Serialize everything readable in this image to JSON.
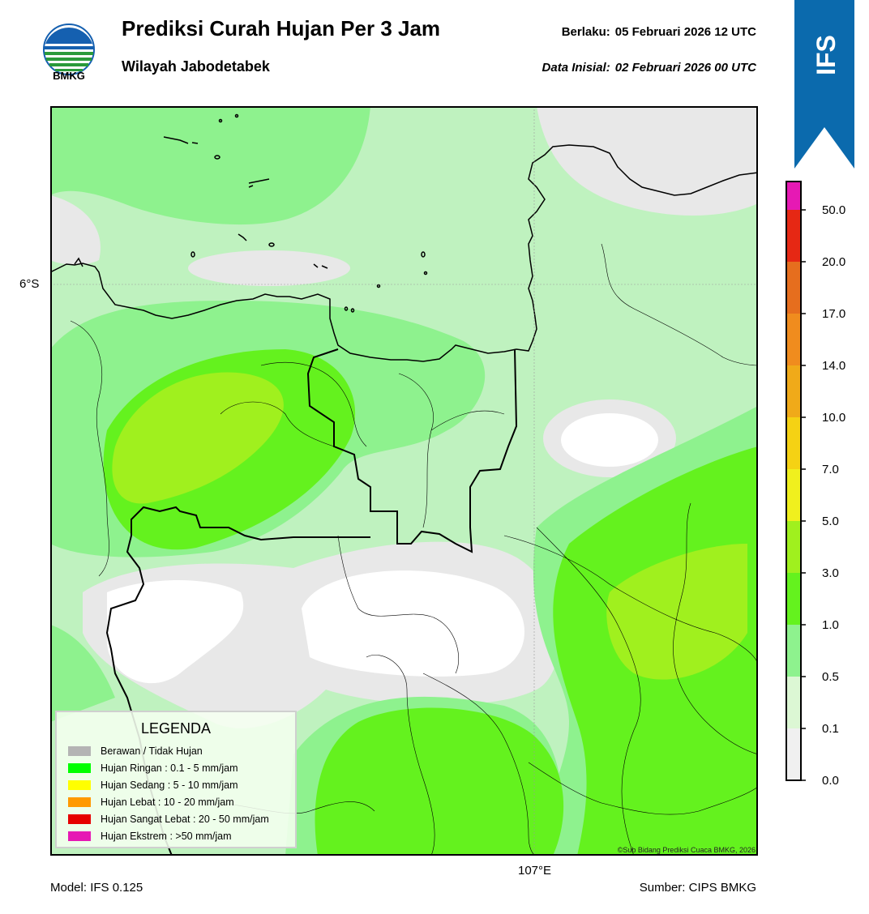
{
  "header": {
    "title": "Prediksi Curah Hujan Per 3 Jam",
    "subtitle": "Wilayah Jabodetabek",
    "valid_label": "Berlaku:",
    "valid_value": "05 Februari 2026 12 UTC",
    "init_label": "Data Inisial:",
    "init_value": "02 Februari 2026 00 UTC",
    "logo_text": "BMKG",
    "badge_text": "IFS"
  },
  "map": {
    "lat_label": "6°S",
    "lon_label": "107°E",
    "credit": "©Sub Bidang Prediksi Cuaca BMKG, 2026"
  },
  "legend": {
    "title": "LEGENDA",
    "items": [
      {
        "label": "Berawan / Tidak Hujan",
        "color": "#b4b4b4"
      },
      {
        "label": "Hujan Ringan : 0.1 - 5 mm/jam",
        "color": "#00ff00"
      },
      {
        "label": "Hujan Sedang : 5 - 10 mm/jam",
        "color": "#ffff00"
      },
      {
        "label": "Hujan Lebat : 10 - 20 mm/jam",
        "color": "#ff9900"
      },
      {
        "label": "Hujan Sangat Lebat : 20 - 50 mm/jam",
        "color": "#e60000"
      },
      {
        "label": "Hujan Ekstrem : >50 mm/jam",
        "color": "#e619b4"
      }
    ]
  },
  "colorbar": {
    "ticks": [
      "0.0",
      "0.1",
      "0.5",
      "1.0",
      "3.0",
      "5.0",
      "7.0",
      "10.0",
      "14.0",
      "17.0",
      "20.0",
      "50.0"
    ],
    "colors": [
      "#f0f0f0",
      "#dcf7d4",
      "#8ef28e",
      "#64f21e",
      "#a0f01e",
      "#f0f01e",
      "#f5d214",
      "#f0aa19",
      "#f08c1e",
      "#e66e1e",
      "#e62814",
      "#e619b4"
    ]
  },
  "footer": {
    "model": "Model: IFS 0.125",
    "source": "Sumber: CIPS BMKG"
  }
}
